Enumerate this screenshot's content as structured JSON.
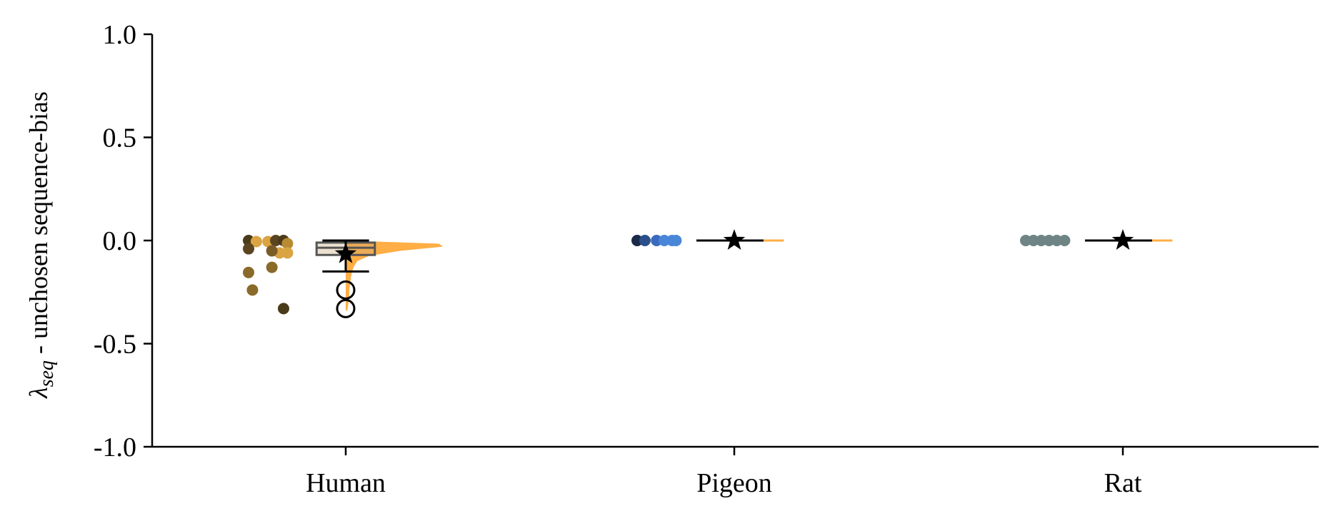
{
  "chart_data": {
    "type": "raincloud",
    "title": "",
    "xlabel": "",
    "ylabel": {
      "symbol": "λ",
      "subscript": "seq",
      "text": " - unchosen sequence-bias"
    },
    "ylim": [
      -1.0,
      1.0
    ],
    "yticks": [
      {
        "value": 1.0,
        "label": "1.0"
      },
      {
        "value": 0.5,
        "label": "0.5"
      },
      {
        "value": 0.0,
        "label": "0.0"
      },
      {
        "value": -0.5,
        "label": "-0.5"
      },
      {
        "value": -1.0,
        "label": "-1.0"
      }
    ],
    "categories": [
      "Human",
      "Pigeon",
      "Rat"
    ],
    "groups": [
      {
        "name": "Human",
        "points": [
          {
            "y": 0.0,
            "jitter": -0.25,
            "color": "#4a3a1a"
          },
          {
            "y": -0.005,
            "jitter": -0.23,
            "color": "#d9a441"
          },
          {
            "y": -0.005,
            "jitter": -0.2,
            "color": "#d9a441"
          },
          {
            "y": 0.0,
            "jitter": -0.18,
            "color": "#5b4420"
          },
          {
            "y": 0.0,
            "jitter": -0.16,
            "color": "#4a3a1a"
          },
          {
            "y": -0.015,
            "jitter": -0.15,
            "color": "#b88a32"
          },
          {
            "y": -0.04,
            "jitter": -0.25,
            "color": "#5b4420"
          },
          {
            "y": -0.06,
            "jitter": -0.17,
            "color": "#d9a441"
          },
          {
            "y": -0.06,
            "jitter": -0.15,
            "color": "#d9a441"
          },
          {
            "y": -0.05,
            "jitter": -0.19,
            "color": "#7a5c28"
          },
          {
            "y": -0.13,
            "jitter": -0.19,
            "color": "#8a6a2a"
          },
          {
            "y": -0.155,
            "jitter": -0.25,
            "color": "#8a6a2a"
          },
          {
            "y": -0.24,
            "jitter": -0.24,
            "color": "#8a6a2a"
          },
          {
            "y": -0.33,
            "jitter": -0.16,
            "color": "#4a3a1a"
          }
        ],
        "box": {
          "q1": -0.07,
          "median": -0.035,
          "q3": -0.01,
          "whisker_low": -0.075,
          "whisker_high": 0.0
        },
        "mean": -0.065,
        "errorbar": {
          "low": -0.15,
          "high": 0.0
        },
        "outliers": [
          -0.24,
          -0.33
        ],
        "density": [
          {
            "y": -0.005,
            "d": 0.08
          },
          {
            "y": -0.015,
            "d": 0.24
          },
          {
            "y": -0.03,
            "d": 0.25
          },
          {
            "y": -0.05,
            "d": 0.14
          },
          {
            "y": -0.075,
            "d": 0.06
          },
          {
            "y": -0.1,
            "d": 0.03
          },
          {
            "y": -0.13,
            "d": 0.02
          },
          {
            "y": -0.17,
            "d": 0.014
          },
          {
            "y": -0.23,
            "d": 0.01
          },
          {
            "y": -0.29,
            "d": 0.008
          },
          {
            "y": -0.34,
            "d": 0.004
          }
        ],
        "density_color": "#ffae45"
      },
      {
        "name": "Pigeon",
        "points": [
          {
            "y": 0.0,
            "jitter": -0.25,
            "color": "#1a2a4a"
          },
          {
            "y": 0.0,
            "jitter": -0.23,
            "color": "#2a4f8a"
          },
          {
            "y": 0.0,
            "jitter": -0.2,
            "color": "#3a6bbf"
          },
          {
            "y": 0.0,
            "jitter": -0.18,
            "color": "#4a86d8"
          },
          {
            "y": 0.0,
            "jitter": -0.16,
            "color": "#4a86d8"
          },
          {
            "y": 0.0,
            "jitter": -0.15,
            "color": "#4a86d8"
          }
        ],
        "box": {
          "q1": 0.0,
          "median": 0.0,
          "q3": 0.0,
          "whisker_low": 0.0,
          "whisker_high": 0.0
        },
        "mean": 0.0,
        "errorbar": {
          "low": 0.0,
          "high": 0.0
        },
        "outliers": [],
        "density": [],
        "density_color": "#ffae45"
      },
      {
        "name": "Rat",
        "points": [
          {
            "y": 0.0,
            "jitter": -0.25,
            "color": "#6e8485"
          },
          {
            "y": 0.0,
            "jitter": -0.23,
            "color": "#6e8485"
          },
          {
            "y": 0.0,
            "jitter": -0.21,
            "color": "#6e8485"
          },
          {
            "y": 0.0,
            "jitter": -0.19,
            "color": "#6e8485"
          },
          {
            "y": 0.0,
            "jitter": -0.17,
            "color": "#6e8485"
          },
          {
            "y": 0.0,
            "jitter": -0.15,
            "color": "#6e8485"
          }
        ],
        "box": {
          "q1": 0.0,
          "median": 0.0,
          "q3": 0.0,
          "whisker_low": 0.0,
          "whisker_high": 0.0
        },
        "mean": 0.0,
        "errorbar": {
          "low": 0.0,
          "high": 0.0
        },
        "outliers": [],
        "density": [],
        "density_color": "#ffae45"
      }
    ],
    "grid": false,
    "legend": "none"
  }
}
